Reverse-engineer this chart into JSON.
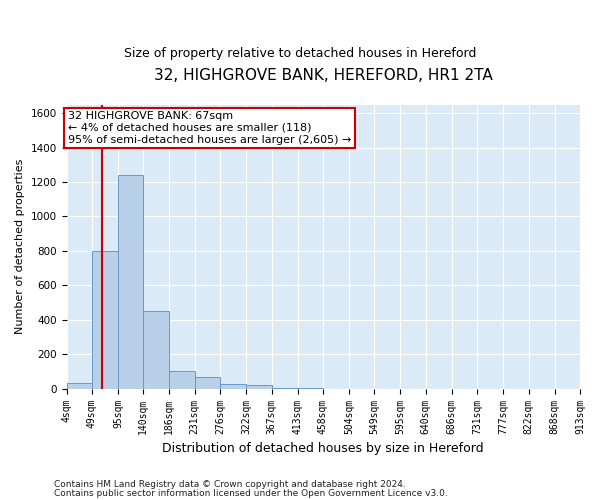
{
  "title": "32, HIGHGROVE BANK, HEREFORD, HR1 2TA",
  "subtitle": "Size of property relative to detached houses in Hereford",
  "xlabel": "Distribution of detached houses by size in Hereford",
  "ylabel": "Number of detached properties",
  "footnote1": "Contains HM Land Registry data © Crown copyright and database right 2024.",
  "footnote2": "Contains public sector information licensed under the Open Government Licence v3.0.",
  "bin_edges": [
    4,
    49,
    95,
    140,
    186,
    231,
    276,
    322,
    367,
    413,
    458,
    504,
    549,
    595,
    640,
    686,
    731,
    777,
    822,
    868,
    913
  ],
  "bar_heights": [
    35,
    800,
    1240,
    450,
    100,
    65,
    30,
    20,
    5,
    5,
    0,
    0,
    0,
    0,
    0,
    0,
    0,
    0,
    0,
    0
  ],
  "bar_color": "#b8d0e8",
  "bar_edge_color": "#6699cc",
  "background_color": "#daeaf7",
  "grid_color": "#ffffff",
  "property_size": 67,
  "vline_color": "#cc0000",
  "annotation_line1": "32 HIGHGROVE BANK: 67sqm",
  "annotation_line2": "← 4% of detached houses are smaller (118)",
  "annotation_line3": "95% of semi-detached houses are larger (2,605) →",
  "annotation_box_color": "#cc0000",
  "ylim": [
    0,
    1650
  ],
  "yticks": [
    0,
    200,
    400,
    600,
    800,
    1000,
    1200,
    1400,
    1600
  ],
  "title_fontsize": 11,
  "subtitle_fontsize": 9,
  "ylabel_fontsize": 8,
  "xlabel_fontsize": 9,
  "tick_fontsize": 7,
  "annotation_fontsize": 8,
  "footnote_fontsize": 6.5
}
